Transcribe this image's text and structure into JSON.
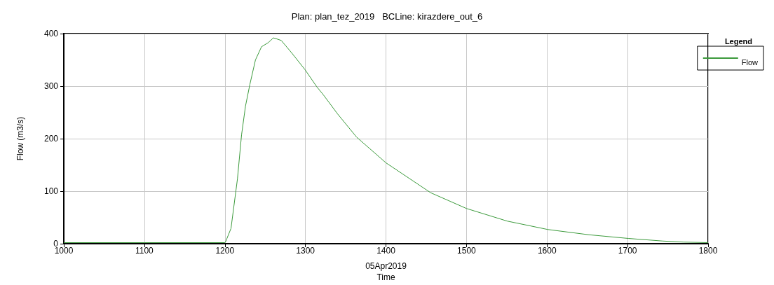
{
  "chart_data": {
    "type": "line",
    "title": "Plan: plan_tez_2019   BCLine: kirazdere_out_6",
    "xlabel": "Time",
    "ylabel": "Flow (m3/s)",
    "legend_title": "Legend",
    "annotations": [
      "05Apr2019"
    ],
    "series": [
      {
        "name": "Flow",
        "color": "#3c9a3c",
        "x": [
          1000,
          1100,
          1200,
          1201,
          1207.6,
          1215.6,
          1220.7,
          1225.6,
          1231,
          1238,
          1245.5,
          1254,
          1260.3,
          1270,
          1282.6,
          1299.7,
          1314,
          1322.5,
          1340,
          1363.5,
          1400,
          1455.6,
          1500,
          1550.6,
          1601,
          1652,
          1701,
          1744,
          1770,
          1800
        ],
        "values": [
          2,
          2,
          2,
          4,
          29,
          123,
          207,
          262,
          303,
          350,
          375,
          383,
          392,
          387,
          364,
          331,
          299,
          283,
          247,
          203,
          154,
          97,
          67,
          43,
          27,
          17,
          10,
          5,
          3,
          2
        ]
      }
    ],
    "xlim": [
      1000,
      1800
    ],
    "xticks": [
      1000,
      1100,
      1200,
      1300,
      1400,
      1500,
      1600,
      1700,
      1800
    ],
    "ylim": [
      0,
      400
    ],
    "yticks": [
      0,
      100,
      200,
      300,
      400
    ],
    "grid": true,
    "legend": "top right",
    "marker": "none",
    "line_style": "solid"
  }
}
